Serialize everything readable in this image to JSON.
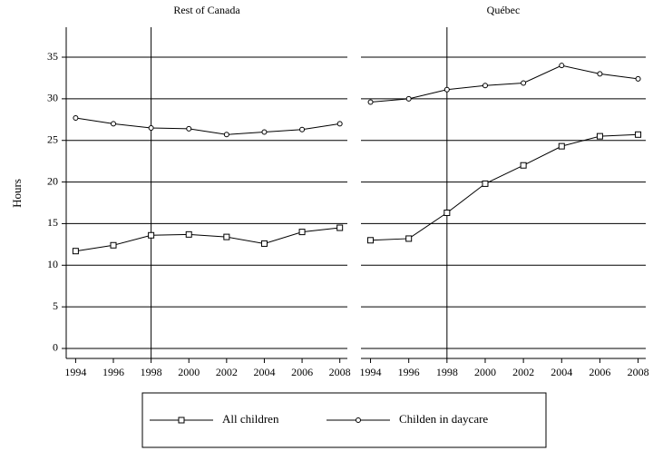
{
  "chart_data": [
    {
      "type": "line",
      "title": "Rest of Canada",
      "ylabel": "Hours",
      "x": [
        1994,
        1996,
        1998,
        2000,
        2002,
        2004,
        2006,
        2008
      ],
      "xlim": [
        1993.5,
        2008.4
      ],
      "xticks": [
        1994,
        1996,
        1998,
        2000,
        2002,
        2004,
        2006,
        2008
      ],
      "ylim": [
        -1.2,
        38.6
      ],
      "yticks": [
        0,
        5,
        10,
        15,
        20,
        25,
        30,
        35
      ],
      "grid": true,
      "vline": 1998,
      "series": [
        {
          "name": "All children",
          "color": "#000000",
          "marker": "square",
          "values": [
            11.7,
            12.4,
            13.6,
            13.7,
            13.4,
            12.6,
            14.0,
            14.5
          ]
        },
        {
          "name": "Childen in daycare",
          "color": "#000000",
          "marker": "circle",
          "values": [
            27.7,
            27.0,
            26.5,
            26.4,
            25.7,
            26.0,
            26.3,
            27.0
          ]
        }
      ]
    },
    {
      "type": "line",
      "title": "Québec",
      "x": [
        1994,
        1996,
        1998,
        2000,
        2002,
        2004,
        2006,
        2008
      ],
      "xlim": [
        1993.5,
        2008.4
      ],
      "xticks": [
        1994,
        1996,
        1998,
        2000,
        2002,
        2004,
        2006,
        2008
      ],
      "ylim": [
        -1.2,
        38.6
      ],
      "grid": true,
      "vline": 1998,
      "series": [
        {
          "color": "#000000",
          "marker": "square",
          "values": [
            13.0,
            13.2,
            16.3,
            19.8,
            22.0,
            24.3,
            25.5,
            25.7
          ]
        },
        {
          "color": "#000000",
          "marker": "circle",
          "values": [
            29.6,
            30.0,
            31.1,
            31.6,
            31.9,
            34.0,
            33.0,
            32.4
          ]
        }
      ]
    }
  ]
}
